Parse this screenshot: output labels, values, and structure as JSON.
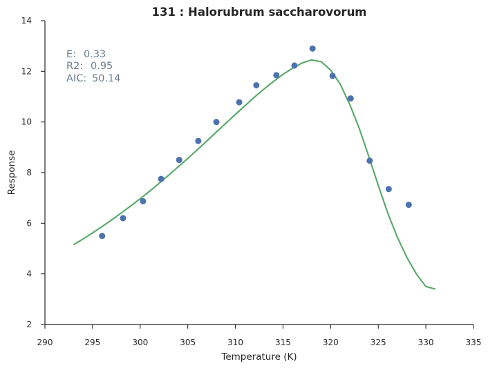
{
  "chart_data": {
    "type": "scatter",
    "title": "131 : Halorubrum saccharovorum",
    "xlabel": "Temperature (K)",
    "ylabel": "Response",
    "xlim": [
      290,
      335
    ],
    "ylim": [
      2,
      14
    ],
    "xticks": [
      290,
      295,
      300,
      305,
      310,
      315,
      320,
      325,
      330,
      335
    ],
    "yticks": [
      2,
      4,
      6,
      8,
      10,
      12,
      14
    ],
    "grid": false,
    "annotations": [
      {
        "label": "E:",
        "value": "0.33"
      },
      {
        "label": "R2:",
        "value": "0.95"
      },
      {
        "label": "AIC:",
        "value": "50.14"
      }
    ],
    "points": {
      "color": "#4c72b0",
      "x": [
        296.0,
        298.2,
        300.3,
        302.2,
        304.1,
        306.1,
        308.0,
        310.4,
        312.2,
        314.3,
        316.2,
        318.1,
        320.2,
        322.1,
        324.1,
        326.1,
        328.2
      ],
      "y": [
        5.5,
        6.2,
        6.87,
        7.75,
        8.5,
        9.25,
        10.0,
        10.78,
        11.45,
        11.85,
        12.23,
        12.9,
        11.82,
        10.93,
        8.47,
        7.35,
        6.73
      ]
    },
    "fit_line": {
      "color": "#55a868",
      "x": [
        293,
        294,
        295,
        296,
        297,
        298,
        299,
        300,
        301,
        302,
        303,
        304,
        305,
        306,
        307,
        308,
        309,
        310,
        311,
        312,
        313,
        314,
        315,
        316,
        317,
        318,
        319,
        320,
        321,
        322,
        323,
        324,
        325,
        326,
        327,
        328,
        329,
        330,
        331
      ],
      "y": [
        5.15,
        5.38,
        5.62,
        5.87,
        6.13,
        6.4,
        6.68,
        6.97,
        7.27,
        7.58,
        7.9,
        8.23,
        8.56,
        8.9,
        9.25,
        9.6,
        9.95,
        10.3,
        10.64,
        10.98,
        11.3,
        11.6,
        11.88,
        12.12,
        12.33,
        12.45,
        12.38,
        12.05,
        11.5,
        10.7,
        9.75,
        8.65,
        7.5,
        6.4,
        5.45,
        4.65,
        4.0,
        3.5,
        3.4
      ]
    }
  }
}
